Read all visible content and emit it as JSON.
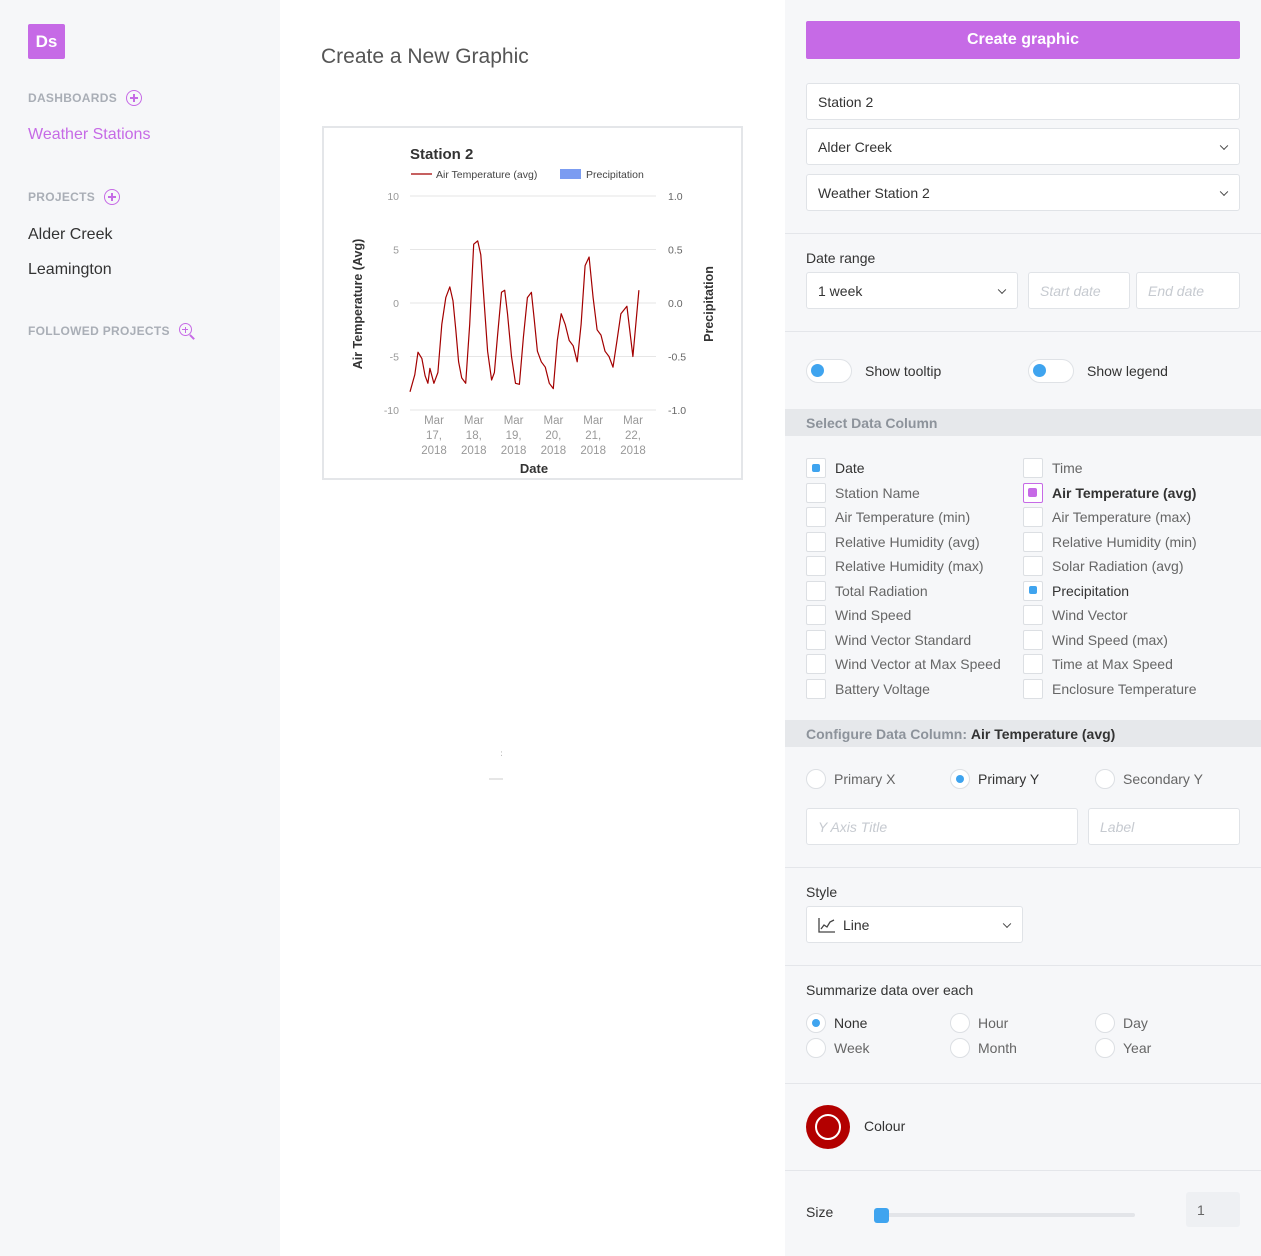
{
  "sidebar": {
    "logo": "Ds",
    "dashboards_heading": "DASHBOARDS",
    "dashboards": [
      "Weather Stations"
    ],
    "projects_heading": "PROJECTS",
    "projects": [
      "Alder Creek",
      "Leamington"
    ],
    "followed_heading": "FOLLOWED PROJECTS"
  },
  "main": {
    "title": "Create a New Graphic"
  },
  "chart_data": {
    "type": "line",
    "title": "Station 2",
    "xlabel": "Date",
    "ylabel": "Air Temperature (Avg)",
    "y2label": "Precipitation",
    "ylim": [
      -10,
      10
    ],
    "y2lim": [
      -1.0,
      1.0
    ],
    "yticks": [
      "10",
      "5",
      "0",
      "-5",
      "-10"
    ],
    "y2ticks": [
      "1.0",
      "0.5",
      "0.0",
      "-0.5",
      "-1.0"
    ],
    "xticks": [
      [
        "Mar",
        "17,",
        "2018"
      ],
      [
        "Mar",
        "18,",
        "2018"
      ],
      [
        "Mar",
        "19,",
        "2018"
      ],
      [
        "Mar",
        "20,",
        "2018"
      ],
      [
        "Mar",
        "21,",
        "2018"
      ],
      [
        "Mar",
        "22,",
        "2018"
      ]
    ],
    "legend": [
      {
        "name": "Air Temperature (avg)",
        "color": "#a30000",
        "kind": "line"
      },
      {
        "name": "Precipitation",
        "color": "#7b9cf1",
        "kind": "bar"
      }
    ],
    "legend_position": "top",
    "grid": "horizontal",
    "series": [
      {
        "name": "Air Temperature (avg)",
        "color": "#a30000",
        "x_days": [
          0,
          0.12,
          0.2,
          0.3,
          0.38,
          0.45,
          0.5,
          0.6,
          0.7,
          0.8,
          0.9,
          1.0,
          1.08,
          1.15,
          1.22,
          1.3,
          1.4,
          1.5,
          1.6,
          1.7,
          1.78,
          1.85,
          1.95,
          2.05,
          2.12,
          2.2,
          2.3,
          2.38,
          2.45,
          2.55,
          2.65,
          2.75,
          2.85,
          2.95,
          3.05,
          3.12,
          3.2,
          3.3,
          3.4,
          3.5,
          3.6,
          3.7,
          3.8,
          3.9,
          4.0,
          4.1,
          4.2,
          4.3,
          4.4,
          4.5,
          4.6,
          4.7,
          4.8,
          4.9,
          5.0,
          5.1,
          5.2,
          5.3,
          5.45,
          5.6,
          5.75
        ],
        "values": [
          -8.3,
          -6.7,
          -4.6,
          -5.2,
          -6.8,
          -7.5,
          -6.1,
          -7.5,
          -6.5,
          -2.0,
          0.5,
          1.5,
          0.2,
          -2.5,
          -5.5,
          -7.0,
          -7.5,
          -2.0,
          5.5,
          5.8,
          4.5,
          0.8,
          -4.5,
          -7.2,
          -6.5,
          -3.0,
          1.0,
          1.2,
          -1.0,
          -5.0,
          -7.5,
          -7.6,
          -3.2,
          0.5,
          1.0,
          -1.5,
          -4.5,
          -5.5,
          -6.0,
          -7.5,
          -8.0,
          -3.5,
          -1.0,
          -2.0,
          -3.5,
          -4.0,
          -5.5,
          -2.0,
          3.5,
          4.3,
          0.5,
          -2.5,
          -3.0,
          -4.5,
          -5.0,
          -6.0,
          -3.5,
          -1.0,
          -0.3,
          -5.0,
          1.2
        ]
      }
    ]
  },
  "panel": {
    "create_button": "Create graphic",
    "graphic_title": "Station 2",
    "project_select": "Alder Creek",
    "station_select": "Weather Station 2",
    "date_range_label": "Date range",
    "date_range_select": "1 week",
    "start_date_placeholder": "Start date",
    "end_date_placeholder": "End date",
    "show_tooltip": "Show tooltip",
    "show_legend": "Show legend",
    "select_column_heading": "Select Data Column",
    "columns": [
      {
        "label": "Date",
        "state": "checked"
      },
      {
        "label": "Time",
        "state": "unchecked"
      },
      {
        "label": "Station Name",
        "state": "unchecked"
      },
      {
        "label": "Air Temperature (avg)",
        "state": "selected"
      },
      {
        "label": "Air Temperature (min)",
        "state": "unchecked"
      },
      {
        "label": "Air Temperature (max)",
        "state": "unchecked"
      },
      {
        "label": "Relative Humidity (avg)",
        "state": "unchecked"
      },
      {
        "label": "Relative Humidity (min)",
        "state": "unchecked"
      },
      {
        "label": "Relative Humidity (max)",
        "state": "unchecked"
      },
      {
        "label": "Solar Radiation (avg)",
        "state": "unchecked"
      },
      {
        "label": "Total Radiation",
        "state": "unchecked"
      },
      {
        "label": "Precipitation",
        "state": "checked"
      },
      {
        "label": "Wind Speed",
        "state": "unchecked"
      },
      {
        "label": "Wind Vector",
        "state": "unchecked"
      },
      {
        "label": "Wind Vector Standard",
        "state": "unchecked"
      },
      {
        "label": "Wind Speed (max)",
        "state": "unchecked"
      },
      {
        "label": "Wind Vector at Max Speed",
        "state": "unchecked"
      },
      {
        "label": "Time at Max Speed",
        "state": "unchecked"
      },
      {
        "label": "Battery Voltage",
        "state": "unchecked"
      },
      {
        "label": "Enclosure Temperature",
        "state": "unchecked"
      }
    ],
    "configure_heading": "Configure Data Column:",
    "configure_column": "Air Temperature (avg)",
    "axis_options": [
      {
        "label": "Primary X",
        "checked": false
      },
      {
        "label": "Primary Y",
        "checked": true
      },
      {
        "label": "Secondary Y",
        "checked": false
      }
    ],
    "y_axis_title_placeholder": "Y Axis Title",
    "label_placeholder": "Label",
    "style_label": "Style",
    "style_select": "Line",
    "summarize_label": "Summarize data over each",
    "summarize_options": [
      {
        "label": "None",
        "checked": true
      },
      {
        "label": "Hour",
        "checked": false
      },
      {
        "label": "Day",
        "checked": false
      },
      {
        "label": "Week",
        "checked": false
      },
      {
        "label": "Month",
        "checked": false
      },
      {
        "label": "Year",
        "checked": false
      }
    ],
    "colour_label": "Colour",
    "colour_value": "#b30000",
    "size_label": "Size",
    "size_value": "1"
  }
}
